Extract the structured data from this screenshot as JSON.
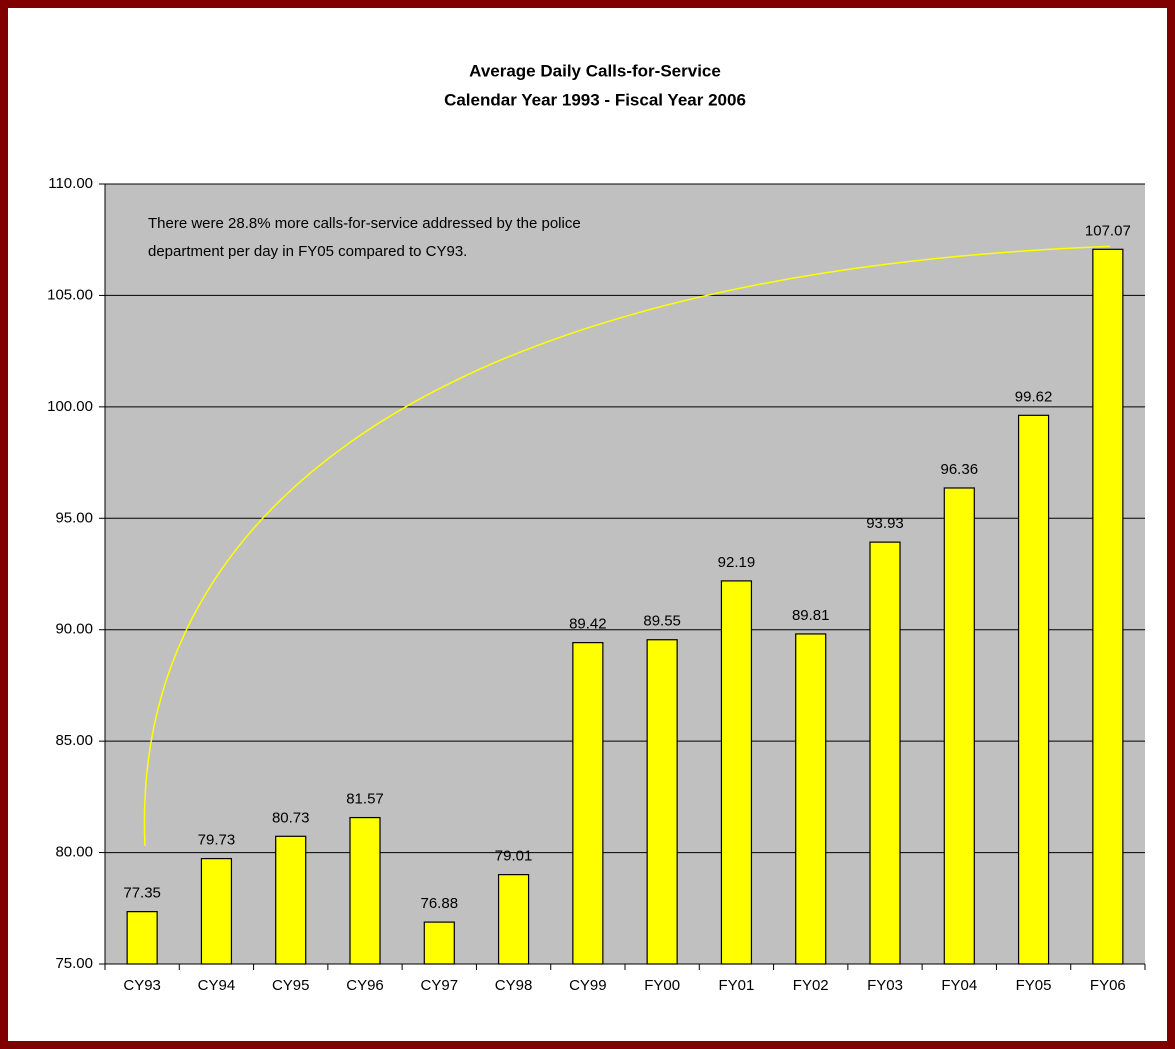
{
  "chart_data": {
    "type": "bar",
    "title": "Average Daily Calls-for-Service",
    "subtitle": "Calendar Year 1993 - Fiscal Year 2006",
    "annotation": [
      "There were 28.8% more calls-for-service addressed by the police",
      "department per day in FY05 compared to CY93."
    ],
    "categories": [
      "CY93",
      "CY94",
      "CY95",
      "CY96",
      "CY97",
      "CY98",
      "CY99",
      "FY00",
      "FY01",
      "FY02",
      "FY03",
      "FY04",
      "FY05",
      "FY06"
    ],
    "values": [
      77.35,
      79.73,
      80.73,
      81.57,
      76.88,
      79.01,
      89.42,
      89.55,
      92.19,
      89.81,
      93.93,
      96.36,
      99.62,
      107.07
    ],
    "color": "#ffff00",
    "ylim": [
      75,
      110
    ],
    "yticks": [
      {
        "value": 75,
        "label": "75.00"
      },
      {
        "value": 80,
        "label": "80.00"
      },
      {
        "value": 85,
        "label": "85.00"
      },
      {
        "value": 90,
        "label": "90.00"
      },
      {
        "value": 95,
        "label": "95.00"
      },
      {
        "value": 100,
        "label": "100.00"
      },
      {
        "value": 105,
        "label": "105.00"
      },
      {
        "value": 110,
        "label": "110.00"
      }
    ],
    "grid": true
  }
}
